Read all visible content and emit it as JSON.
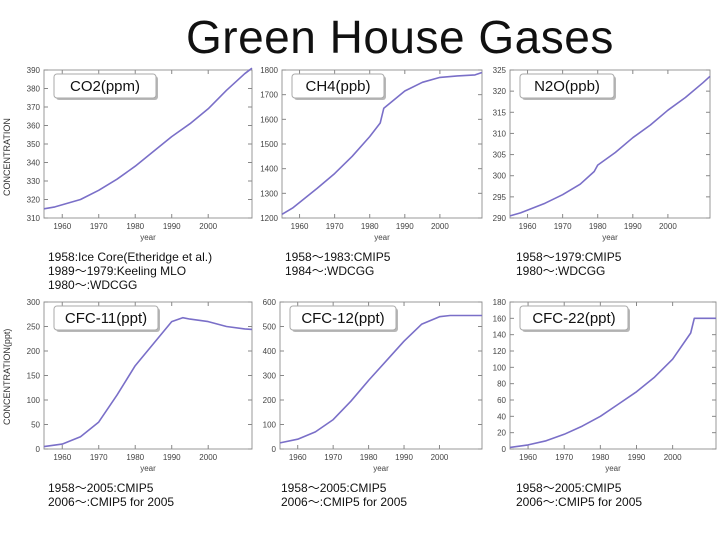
{
  "title": "Green House Gases",
  "axis": {
    "row1_ylabel": "CONCENTRATION",
    "row2_ylabel": "CONCENTRATION(ppt)",
    "xlabel": "year"
  },
  "chart_data": [
    {
      "type": "line",
      "title": "CO2(ppm)",
      "xlabel": "year",
      "ylabel": "CONCENTRATION",
      "xlim": [
        1955,
        2012
      ],
      "ylim": [
        310,
        390
      ],
      "xticks": [
        1960,
        1970,
        1980,
        1990,
        2000
      ],
      "yticks": [
        310,
        320,
        330,
        340,
        350,
        360,
        370,
        380,
        390
      ],
      "grid": false,
      "x": [
        1955,
        1958,
        1965,
        1970,
        1975,
        1980,
        1985,
        1990,
        1995,
        2000,
        2005,
        2010,
        2012
      ],
      "y": [
        315,
        316,
        320,
        325,
        331,
        338,
        346,
        354,
        361,
        369,
        379,
        388,
        391
      ]
    },
    {
      "type": "line",
      "title": "CH4(ppb)",
      "xlabel": "year",
      "xlim": [
        1955,
        2012
      ],
      "ylim": [
        1200,
        1800
      ],
      "xticks": [
        1960,
        1970,
        1980,
        1990,
        2000
      ],
      "yticks": [
        1200,
        1300,
        1400,
        1500,
        1600,
        1700,
        1800
      ],
      "grid": false,
      "x": [
        1955,
        1958,
        1965,
        1970,
        1975,
        1980,
        1983,
        1984,
        1990,
        1995,
        2000,
        2005,
        2010,
        2012
      ],
      "y": [
        1215,
        1240,
        1320,
        1380,
        1450,
        1530,
        1585,
        1645,
        1715,
        1750,
        1770,
        1776,
        1780,
        1790
      ]
    },
    {
      "type": "line",
      "title": "N2O(ppb)",
      "xlabel": "year",
      "xlim": [
        1955,
        2012
      ],
      "ylim": [
        290,
        325
      ],
      "xticks": [
        1960,
        1970,
        1980,
        1990,
        2000
      ],
      "yticks": [
        290,
        295,
        300,
        305,
        310,
        315,
        320,
        325
      ],
      "grid": false,
      "x": [
        1955,
        1958,
        1965,
        1970,
        1975,
        1979,
        1980,
        1985,
        1990,
        1995,
        2000,
        2005,
        2010,
        2012
      ],
      "y": [
        290.5,
        291.2,
        293.5,
        295.5,
        298,
        301,
        302.5,
        305.5,
        309,
        312,
        315.5,
        318.5,
        322,
        323.5
      ]
    },
    {
      "type": "line",
      "title": "CFC-11(ppt)",
      "xlabel": "year",
      "ylabel": "CONCENTRATION(ppt)",
      "xlim": [
        1955,
        2012
      ],
      "ylim": [
        0,
        300
      ],
      "xticks": [
        1960,
        1970,
        1980,
        1990,
        2000
      ],
      "yticks": [
        0,
        50,
        100,
        150,
        200,
        250,
        300
      ],
      "grid": false,
      "x": [
        1955,
        1960,
        1965,
        1970,
        1975,
        1980,
        1985,
        1990,
        1993,
        1995,
        2000,
        2005,
        2010,
        2012
      ],
      "y": [
        5,
        10,
        25,
        55,
        110,
        170,
        215,
        260,
        268,
        265,
        260,
        250,
        245,
        244
      ]
    },
    {
      "type": "line",
      "title": "CFC-12(ppt)",
      "xlabel": "year",
      "xlim": [
        1955,
        2012
      ],
      "ylim": [
        0,
        600
      ],
      "xticks": [
        1960,
        1970,
        1980,
        1990,
        2000
      ],
      "yticks": [
        0,
        100,
        200,
        300,
        400,
        500,
        600
      ],
      "grid": false,
      "x": [
        1955,
        1960,
        1965,
        1970,
        1975,
        1980,
        1985,
        1990,
        1995,
        2000,
        2003,
        2005,
        2010,
        2012
      ],
      "y": [
        25,
        40,
        70,
        120,
        195,
        280,
        360,
        440,
        510,
        540,
        545,
        545,
        545,
        545
      ]
    },
    {
      "type": "line",
      "title": "CFC-22(ppt)",
      "xlabel": "year",
      "xlim": [
        1955,
        2012
      ],
      "ylim": [
        0,
        180
      ],
      "xticks": [
        1960,
        1970,
        1980,
        1990,
        2000
      ],
      "yticks": [
        0,
        20,
        40,
        60,
        80,
        100,
        120,
        140,
        160,
        180
      ],
      "grid": false,
      "x": [
        1955,
        1960,
        1965,
        1970,
        1975,
        1980,
        1985,
        1990,
        1995,
        2000,
        2005,
        2006,
        2010,
        2012
      ],
      "y": [
        2,
        5,
        10,
        18,
        28,
        40,
        55,
        70,
        88,
        110,
        142,
        160,
        160,
        160
      ]
    }
  ],
  "notes": [
    [
      "1958:Ice Core(Etheridge et al.)",
      "1989～1979:Keeling MLO",
      "1980～:WDCGG"
    ],
    [
      "1958～1983:CMIP5",
      "1984～:WDCGG"
    ],
    [
      "1958～1979:CMIP5",
      "1980～:WDCGG"
    ],
    [
      "1958～2005:CMIP5",
      "2006～:CMIP5 for 2005"
    ],
    [
      "1958～2005:CMIP5",
      "2006～:CMIP5 for 2005"
    ],
    [
      "1958～2005:CMIP5",
      "2006～:CMIP5 for 2005"
    ]
  ]
}
